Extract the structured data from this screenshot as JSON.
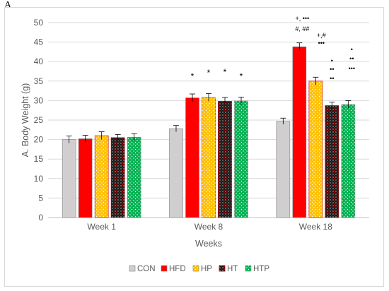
{
  "panel_label": "A",
  "chart_data": {
    "type": "bar",
    "categories": [
      "Week 1",
      "Week 8",
      "Week 18"
    ],
    "series": [
      {
        "name": "CON",
        "values": [
          20.0,
          22.8,
          24.7
        ],
        "errors": [
          0.9,
          0.8,
          0.8
        ],
        "color": "#d0cece",
        "pattern": "solid"
      },
      {
        "name": "HFD",
        "values": [
          20.2,
          30.7,
          43.8
        ],
        "errors": [
          0.9,
          1.0,
          1.0
        ],
        "color": "#ff0000",
        "pattern": "solid"
      },
      {
        "name": "HP",
        "values": [
          21.0,
          30.8,
          35.0
        ],
        "errors": [
          1.0,
          1.0,
          1.0
        ],
        "color": "#ffc000",
        "pattern": "dots-light"
      },
      {
        "name": "HT",
        "values": [
          20.5,
          29.8,
          28.7
        ],
        "errors": [
          0.8,
          1.0,
          0.9
        ],
        "color": "#1a1a1a",
        "pattern": "dots-dark"
      },
      {
        "name": "HTP",
        "values": [
          20.6,
          29.9,
          29.0
        ],
        "errors": [
          0.9,
          1.0,
          1.0
        ],
        "color": "#00b050",
        "pattern": "dots-light"
      }
    ],
    "xlabel": "Weeks",
    "ylabel": "A. Body Weight (g)",
    "ylim": [
      0,
      50
    ],
    "yticks": [
      0,
      5,
      10,
      15,
      20,
      25,
      30,
      35,
      40,
      45,
      50
    ],
    "grid": true,
    "legend_position": "bottom",
    "annotations": {
      "week8_stars": [
        "*",
        "*",
        "*",
        "*"
      ],
      "week18_hfd_line1": "+, •••",
      "week18_hfd_line2": "#, ##",
      "week18_hp_line1": "+,#",
      "week18_hp_line2": "•••",
      "week18_ht": [
        "•",
        "••",
        "••"
      ],
      "week18_htp": [
        "•",
        "••",
        "•••"
      ]
    }
  }
}
